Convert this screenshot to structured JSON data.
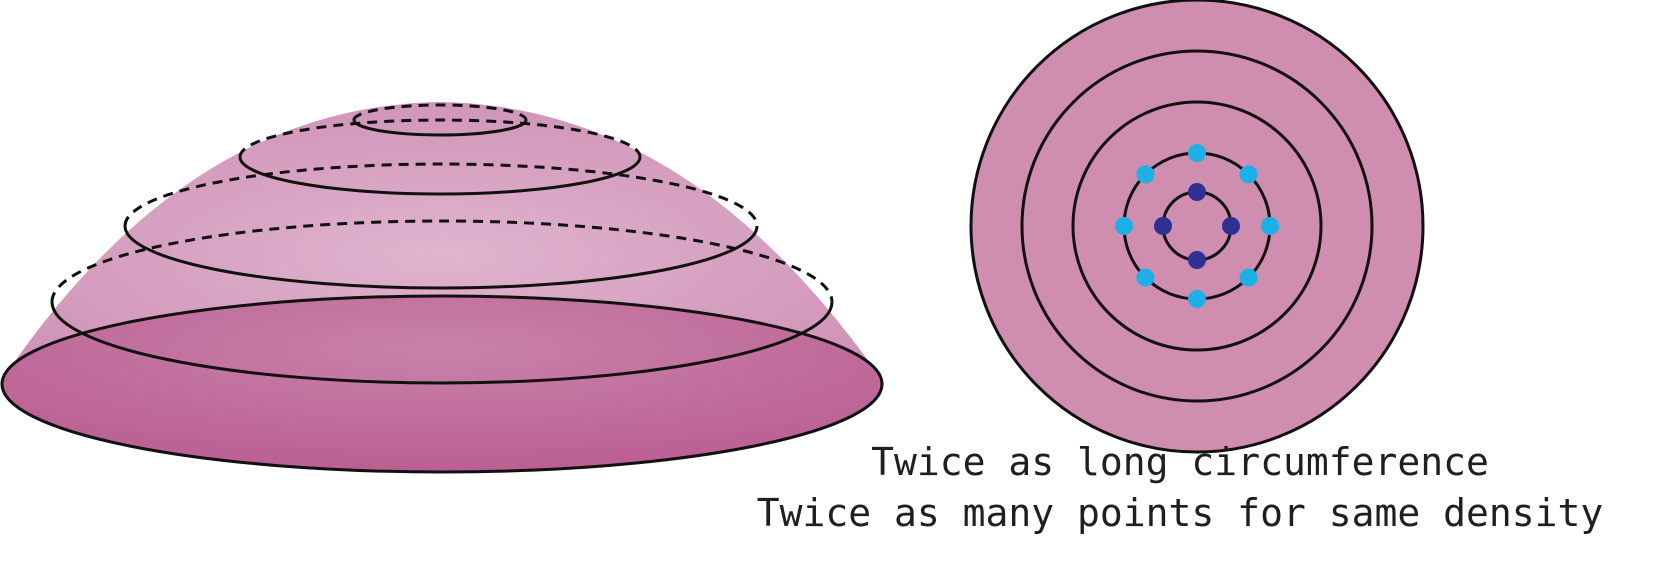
{
  "colors": {
    "dome_light": "#e0b4cf",
    "dome_mid": "#cf92b6",
    "dome_base": "#bb5f93",
    "disk_fill": "#cf8db0",
    "outline": "#111111",
    "inner_points": "#2e3192",
    "outer_points": "#1cb0e6"
  },
  "dome": {
    "latitude_rings": 4,
    "apex_ring": true
  },
  "disk": {
    "concentric_rings": 5,
    "inner_ring_points": 4,
    "outer_ring_points": 8
  },
  "captions": {
    "line1": "Twice as long circumference",
    "line2": "Twice as many points for same density"
  }
}
